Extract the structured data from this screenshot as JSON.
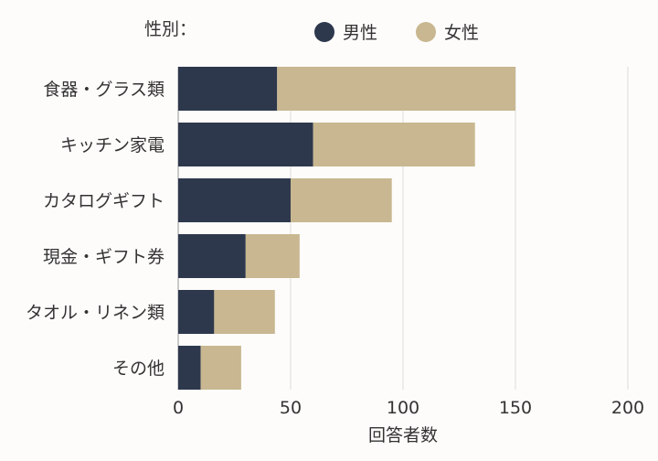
{
  "chart_data": {
    "type": "bar",
    "orientation": "horizontal",
    "stacked": true,
    "categories": [
      "食器・グラス類",
      "キッチン家電",
      "カタログギフト",
      "現金・ギフト券",
      "タオル・リネン類",
      "その他"
    ],
    "series": [
      {
        "name": "男性",
        "color": "#2e384d",
        "values": [
          44,
          60,
          50,
          30,
          16,
          10
        ]
      },
      {
        "name": "女性",
        "color": "#c8b790",
        "values": [
          106,
          72,
          45,
          24,
          27,
          18
        ]
      }
    ],
    "legend_title": "性別：",
    "legend_position": "top",
    "xlabel": "回答者数",
    "ylabel": "",
    "xlim": [
      0,
      200
    ],
    "xticks": [
      0,
      50,
      100,
      150,
      200
    ],
    "grid": true
  }
}
